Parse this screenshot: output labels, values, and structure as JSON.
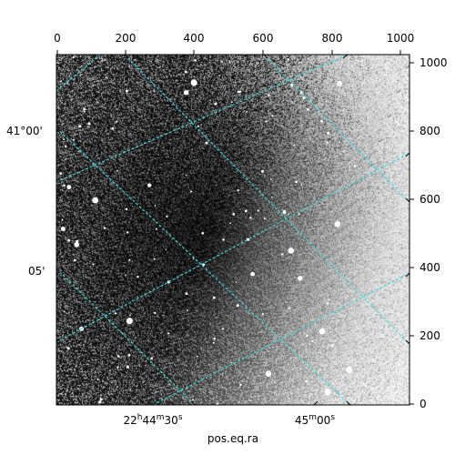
{
  "image": {
    "subject": "astronomical-field",
    "noise_seed": 7
  },
  "axes": {
    "top_ticks": [
      "0",
      "200",
      "400",
      "600",
      "800",
      "1000"
    ],
    "right_ticks": [
      "0",
      "200",
      "400",
      "600",
      "800",
      "1000"
    ],
    "dec_labels": [
      "41°00'",
      "05'"
    ],
    "ra_labels": [
      {
        "h": "22",
        "h_unit": "h",
        "m": "44",
        "m_unit": "m",
        "s": "30",
        "s_unit": "s"
      },
      {
        "m": "45",
        "m_unit": "m",
        "s": "00",
        "s_unit": "s"
      }
    ],
    "xlabel": "pos.eq.ra"
  },
  "colors": {
    "grid": "#35e0e0",
    "frame": "#000000"
  }
}
